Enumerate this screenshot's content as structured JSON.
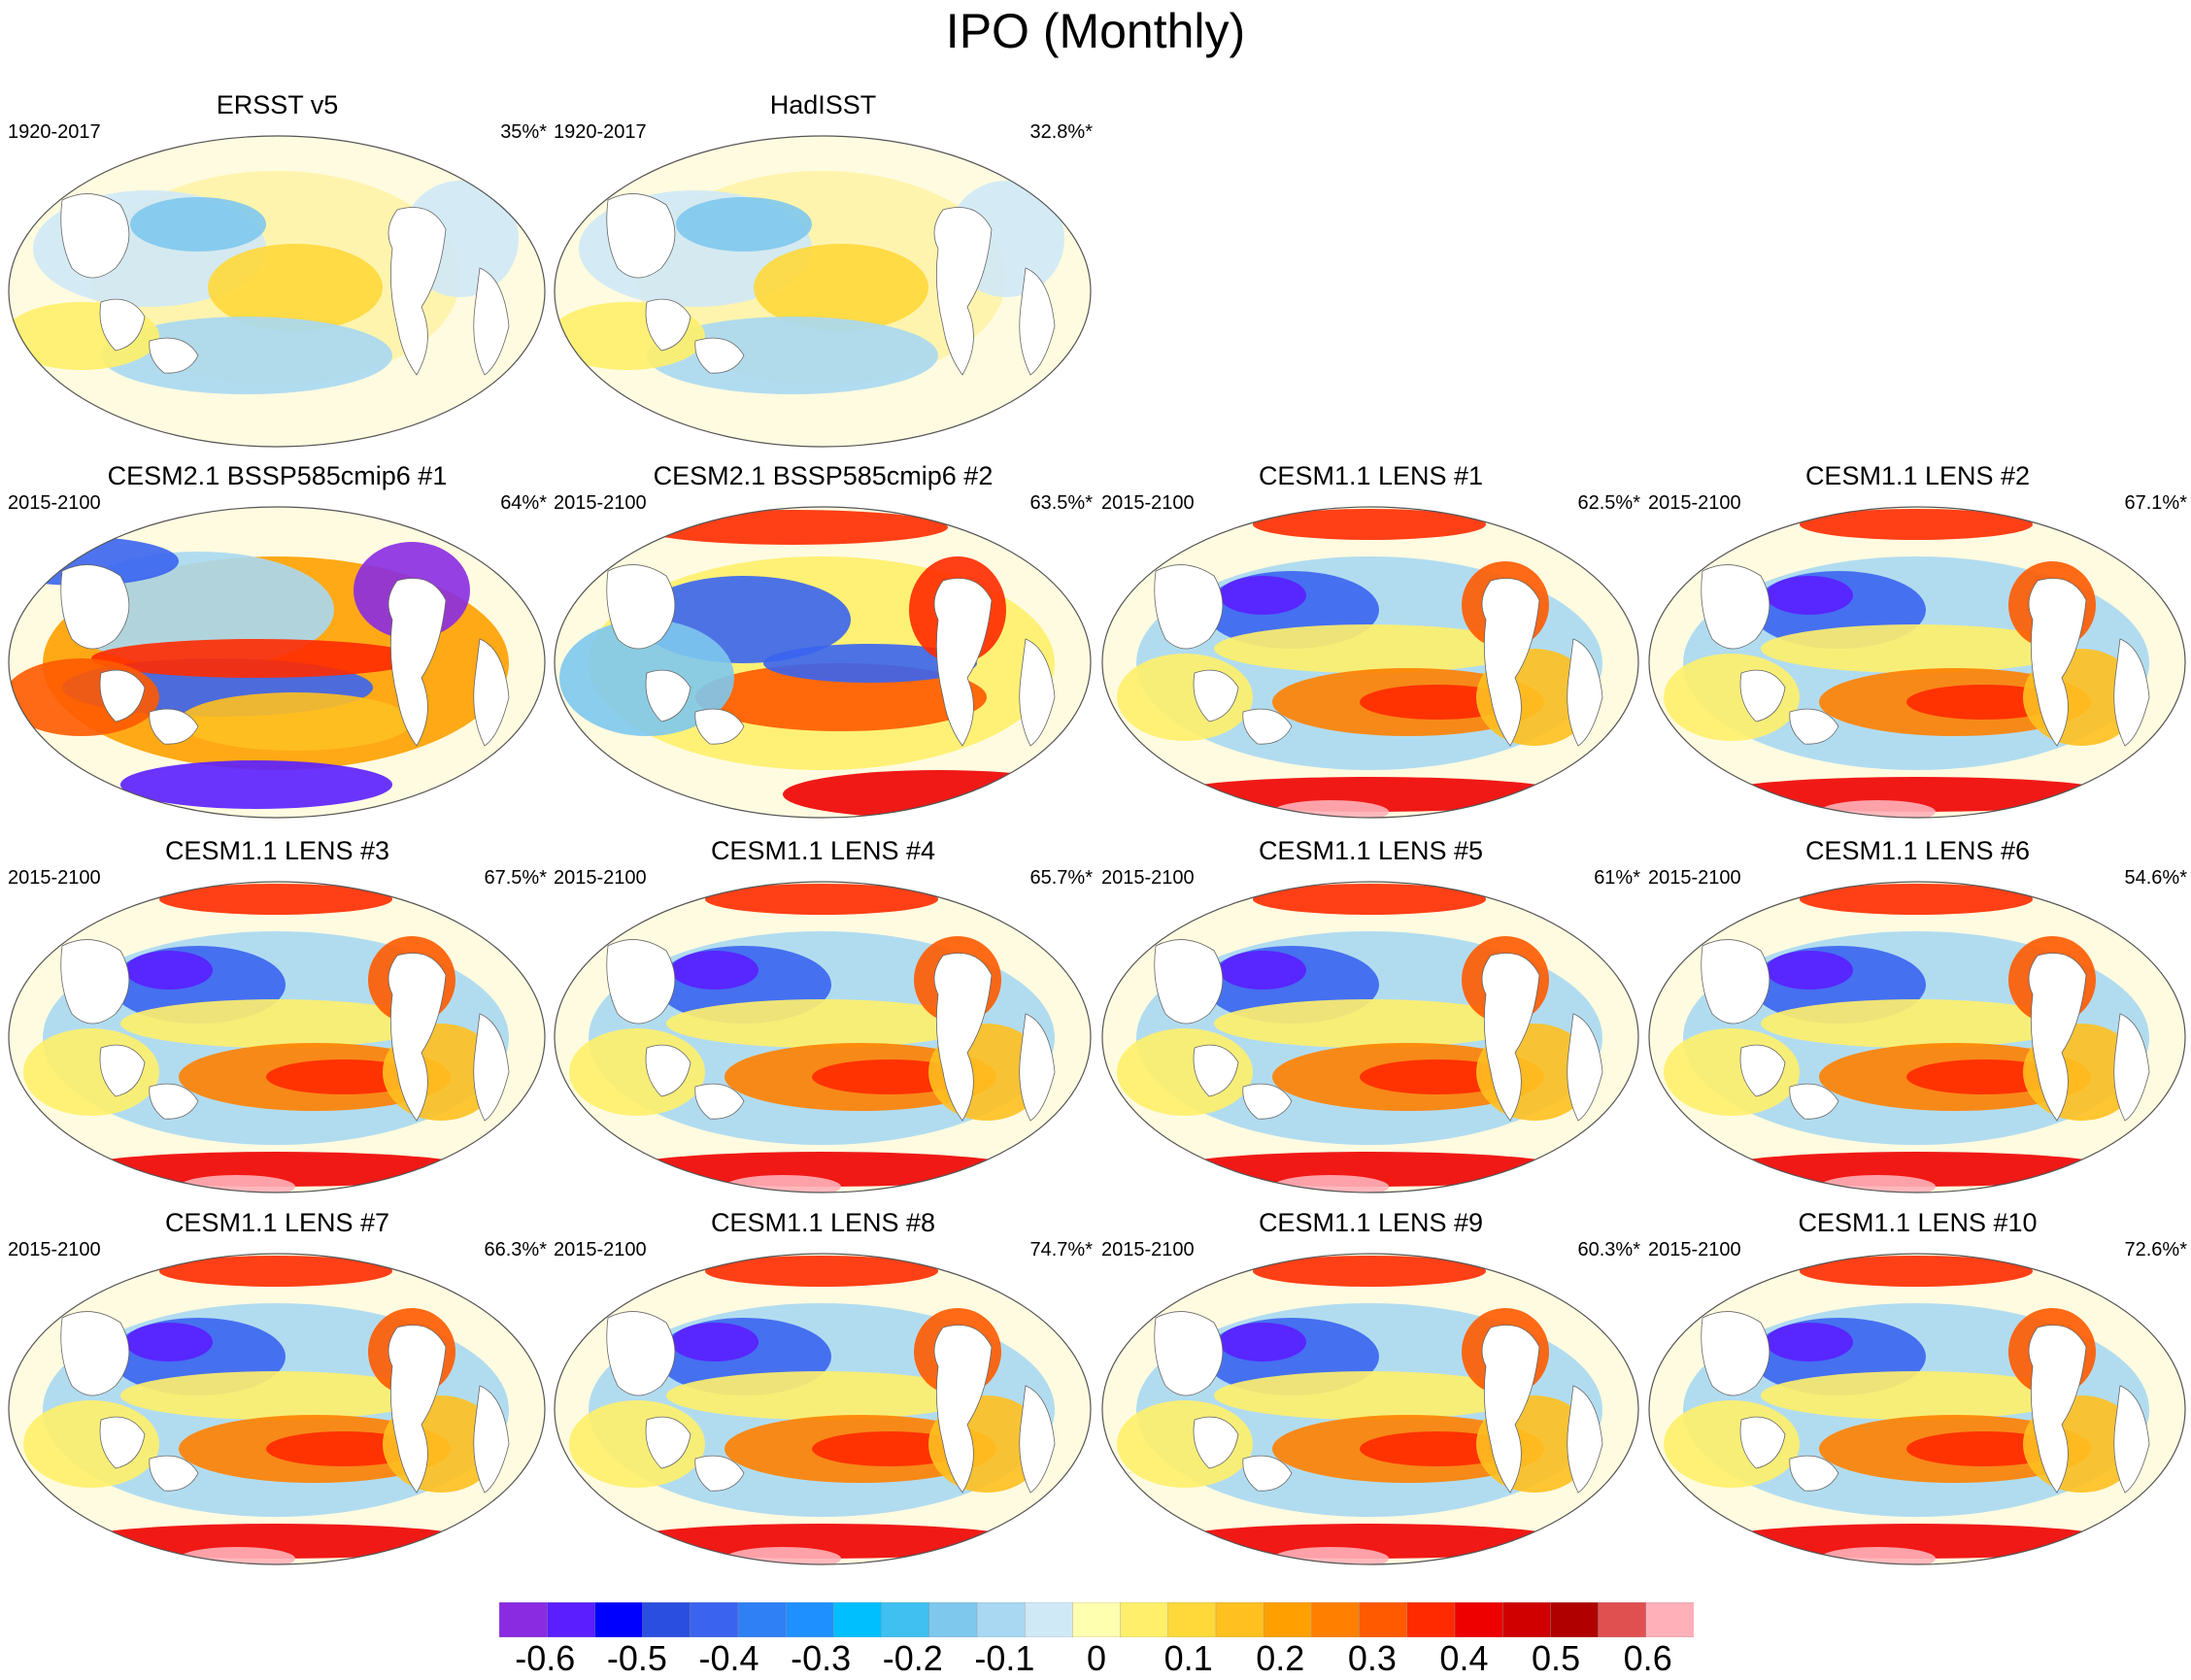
{
  "title": "IPO (Monthly)",
  "panels": [
    {
      "title": "ERSST v5",
      "period": "1920-2017",
      "pct": "35%*",
      "style": "obs"
    },
    {
      "title": "HadISST",
      "period": "1920-2017",
      "pct": "32.8%*",
      "style": "obs"
    },
    {
      "title": "CESM2.1 BSSP585cmip6 #1",
      "period": "2015-2100",
      "pct": "64%*",
      "style": "cesm2a"
    },
    {
      "title": "CESM2.1 BSSP585cmip6 #2",
      "period": "2015-2100",
      "pct": "63.5%*",
      "style": "cesm2b"
    },
    {
      "title": "CESM1.1 LENS #1",
      "period": "2015-2100",
      "pct": "62.5%*",
      "style": "lens"
    },
    {
      "title": "CESM1.1 LENS #2",
      "period": "2015-2100",
      "pct": "67.1%*",
      "style": "lens"
    },
    {
      "title": "CESM1.1 LENS #3",
      "period": "2015-2100",
      "pct": "67.5%*",
      "style": "lens"
    },
    {
      "title": "CESM1.1 LENS #4",
      "period": "2015-2100",
      "pct": "65.7%*",
      "style": "lens"
    },
    {
      "title": "CESM1.1 LENS #5",
      "period": "2015-2100",
      "pct": "61%*",
      "style": "lens"
    },
    {
      "title": "CESM1.1 LENS #6",
      "period": "2015-2100",
      "pct": "54.6%*",
      "style": "lens"
    },
    {
      "title": "CESM1.1 LENS #7",
      "period": "2015-2100",
      "pct": "66.3%*",
      "style": "lens"
    },
    {
      "title": "CESM1.1 LENS #8",
      "period": "2015-2100",
      "pct": "74.7%*",
      "style": "lens"
    },
    {
      "title": "CESM1.1 LENS #9",
      "period": "2015-2100",
      "pct": "60.3%*",
      "style": "lens"
    },
    {
      "title": "CESM1.1 LENS #10",
      "period": "2015-2100",
      "pct": "72.6%*",
      "style": "lens"
    }
  ],
  "colorbar": {
    "colors": [
      "#8a2be2",
      "#5a1eff",
      "#0000ff",
      "#2a4fe0",
      "#3a64f0",
      "#2f7ff5",
      "#1e90ff",
      "#00bfff",
      "#40c0f0",
      "#7ec8ee",
      "#a8d8f2",
      "#cfe9f7",
      "#ffffb0",
      "#ffef6a",
      "#ffd83a",
      "#ffc020",
      "#ffa000",
      "#ff8000",
      "#ff5a00",
      "#ff2a00",
      "#ee0000",
      "#d00000",
      "#b00000",
      "#e05050",
      "#ffb0b8"
    ],
    "labels": [
      "-0.6",
      "-0.5",
      "-0.4",
      "-0.3",
      "-0.2",
      "-0.1",
      "0",
      "0.1",
      "0.2",
      "0.3",
      "0.4",
      "0.5",
      "0.6"
    ],
    "label_values": [
      -0.6,
      -0.5,
      -0.4,
      -0.3,
      -0.2,
      -0.1,
      0,
      0.1,
      0.2,
      0.3,
      0.4,
      0.5,
      0.6
    ],
    "min": -0.65,
    "max": 0.65
  }
}
